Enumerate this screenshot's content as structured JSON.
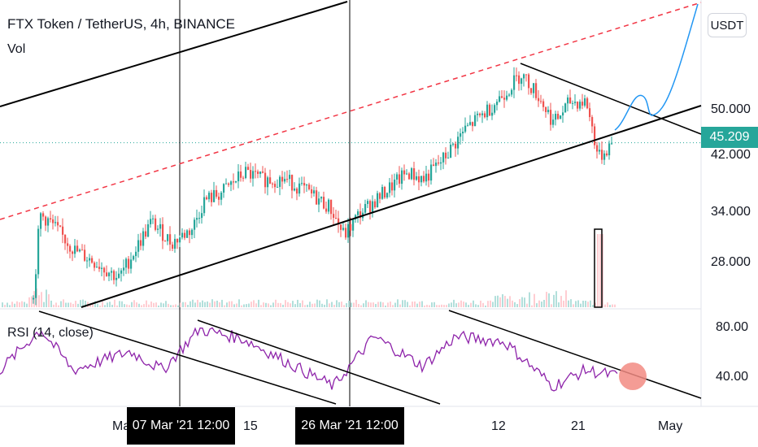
{
  "header": {
    "title": "FTX Token / TetherUS, 4h, BINANCE",
    "vol_label": "Vol",
    "rsi_label": "RSI (14, close)"
  },
  "currency": "USDT",
  "last_price": "45.209",
  "colors": {
    "up": "#26a69a",
    "down": "#ef5350",
    "rsi": "#8e24aa",
    "trend_red": "#f23645",
    "forecast": "#2196f3"
  },
  "price_axis": {
    "labels": [
      "50.000",
      "42.000",
      "34.000",
      "28.000"
    ]
  },
  "rsi_axis": {
    "labels": [
      "80.00",
      "40.00"
    ]
  },
  "time_axis": {
    "labels": [
      "Ma",
      "15",
      "12",
      "21",
      "May"
    ],
    "crosshair_tags": [
      "07 Mar '21  12:00",
      "26 Mar '21  12:00"
    ]
  },
  "chart_data": {
    "type": "candlestick",
    "symbol": "FTX Token / TetherUS",
    "interval": "4h",
    "exchange": "BINANCE",
    "last_price": 45.209,
    "price_key_points": [
      {
        "x": 40,
        "close": 23
      },
      {
        "x": 48,
        "close": 35
      },
      {
        "x": 60,
        "close": 34
      },
      {
        "x": 90,
        "close": 30
      },
      {
        "x": 120,
        "close": 28
      },
      {
        "x": 145,
        "close": 26
      },
      {
        "x": 165,
        "close": 30
      },
      {
        "x": 185,
        "close": 34
      },
      {
        "x": 210,
        "close": 31
      },
      {
        "x": 235,
        "close": 33
      },
      {
        "x": 250,
        "close": 37
      },
      {
        "x": 270,
        "close": 38
      },
      {
        "x": 300,
        "close": 41
      },
      {
        "x": 320,
        "close": 40
      },
      {
        "x": 350,
        "close": 40
      },
      {
        "x": 380,
        "close": 38
      },
      {
        "x": 405,
        "close": 36
      },
      {
        "x": 422,
        "close": 32
      },
      {
        "x": 440,
        "close": 35
      },
      {
        "x": 470,
        "close": 38
      },
      {
        "x": 500,
        "close": 41
      },
      {
        "x": 520,
        "close": 40
      },
      {
        "x": 545,
        "close": 43
      },
      {
        "x": 570,
        "close": 47
      },
      {
        "x": 600,
        "close": 50
      },
      {
        "x": 625,
        "close": 53
      },
      {
        "x": 640,
        "close": 55
      },
      {
        "x": 660,
        "close": 52
      },
      {
        "x": 680,
        "close": 48
      },
      {
        "x": 700,
        "close": 51
      },
      {
        "x": 720,
        "close": 51
      },
      {
        "x": 735,
        "close": 43
      },
      {
        "x": 750,
        "close": 45
      }
    ],
    "forecast_path": [
      {
        "x": 756,
        "price": 45
      },
      {
        "x": 785,
        "price": 52
      },
      {
        "x": 800,
        "price": 49
      },
      {
        "x": 830,
        "price": 62
      },
      {
        "x": 858,
        "price": 75
      }
    ],
    "rsi_key_points": [
      {
        "x": 0,
        "rsi": 45
      },
      {
        "x": 50,
        "rsi": 78
      },
      {
        "x": 90,
        "rsi": 45
      },
      {
        "x": 160,
        "rsi": 60
      },
      {
        "x": 200,
        "rsi": 45
      },
      {
        "x": 245,
        "rsi": 78
      },
      {
        "x": 300,
        "rsi": 70
      },
      {
        "x": 380,
        "rsi": 42
      },
      {
        "x": 410,
        "rsi": 32
      },
      {
        "x": 460,
        "rsi": 72
      },
      {
        "x": 520,
        "rsi": 48
      },
      {
        "x": 560,
        "rsi": 72
      },
      {
        "x": 620,
        "rsi": 68
      },
      {
        "x": 680,
        "rsi": 32
      },
      {
        "x": 720,
        "rsi": 45
      },
      {
        "x": 760,
        "rsi": 40
      }
    ],
    "rsi_highlight": {
      "x": 778,
      "rsi": 40
    }
  }
}
